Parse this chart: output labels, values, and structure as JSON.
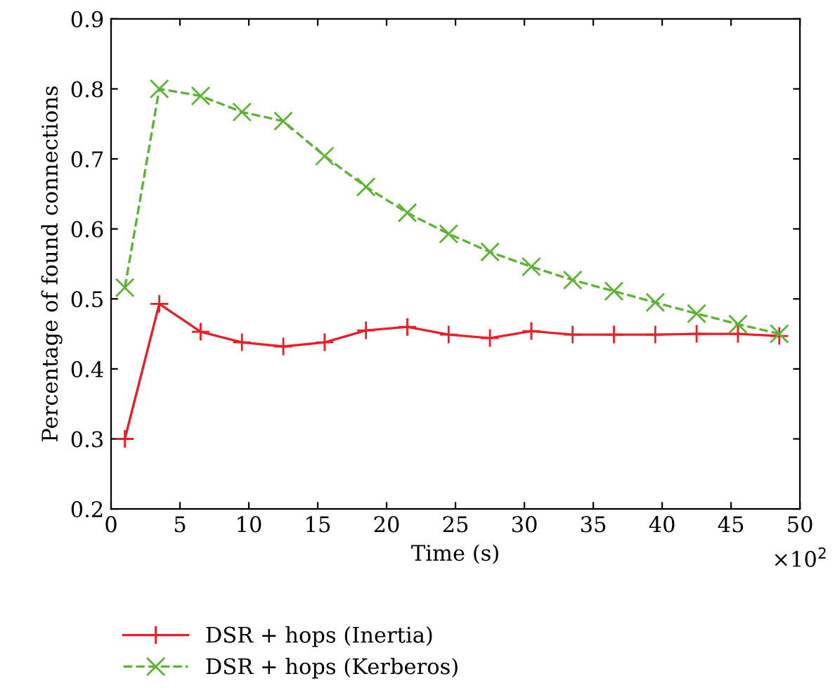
{
  "chart_data": {
    "type": "line",
    "xlabel": "Time (s)",
    "ylabel": "Percentage of found connections",
    "annotations": [
      "×10$^{2}$"
    ],
    "xlim": [
      0,
      50
    ],
    "xticks": [
      0,
      5,
      10,
      15,
      20,
      25,
      30,
      35,
      40,
      45,
      50
    ],
    "ylim": [
      0.2,
      0.9
    ],
    "yticks": [
      0.2,
      0.3,
      0.4,
      0.5,
      0.6,
      0.7,
      0.8,
      0.9
    ],
    "grid": false,
    "legend": "bottom",
    "series": [
      {
        "name": "DSR + hops (Inertia)",
        "color": "#ee1c25",
        "marker": "plus",
        "line_style": "solid",
        "x": [
          1,
          3.5,
          6.5,
          9.5,
          12.5,
          15.5,
          18.5,
          21.5,
          24.5,
          27.5,
          30.5,
          33.5,
          36.5,
          39.5,
          42.5,
          45.5,
          48.5
        ],
        "values": [
          0.3,
          0.493,
          0.453,
          0.438,
          0.432,
          0.438,
          0.455,
          0.46,
          0.449,
          0.444,
          0.454,
          0.449,
          0.449,
          0.449,
          0.45,
          0.45,
          0.447
        ]
      },
      {
        "name": "DSR + hops (Kerberos)",
        "color": "#5cb531",
        "marker": "cross",
        "line_style": "dashed",
        "x": [
          1,
          3.5,
          6.5,
          9.5,
          12.5,
          15.5,
          18.5,
          21.5,
          24.5,
          27.5,
          30.5,
          33.5,
          36.5,
          39.5,
          42.5,
          45.5,
          48.5
        ],
        "values": [
          0.516,
          0.8,
          0.79,
          0.767,
          0.754,
          0.704,
          0.66,
          0.623,
          0.593,
          0.567,
          0.546,
          0.527,
          0.511,
          0.495,
          0.479,
          0.464,
          0.45
        ]
      }
    ]
  }
}
